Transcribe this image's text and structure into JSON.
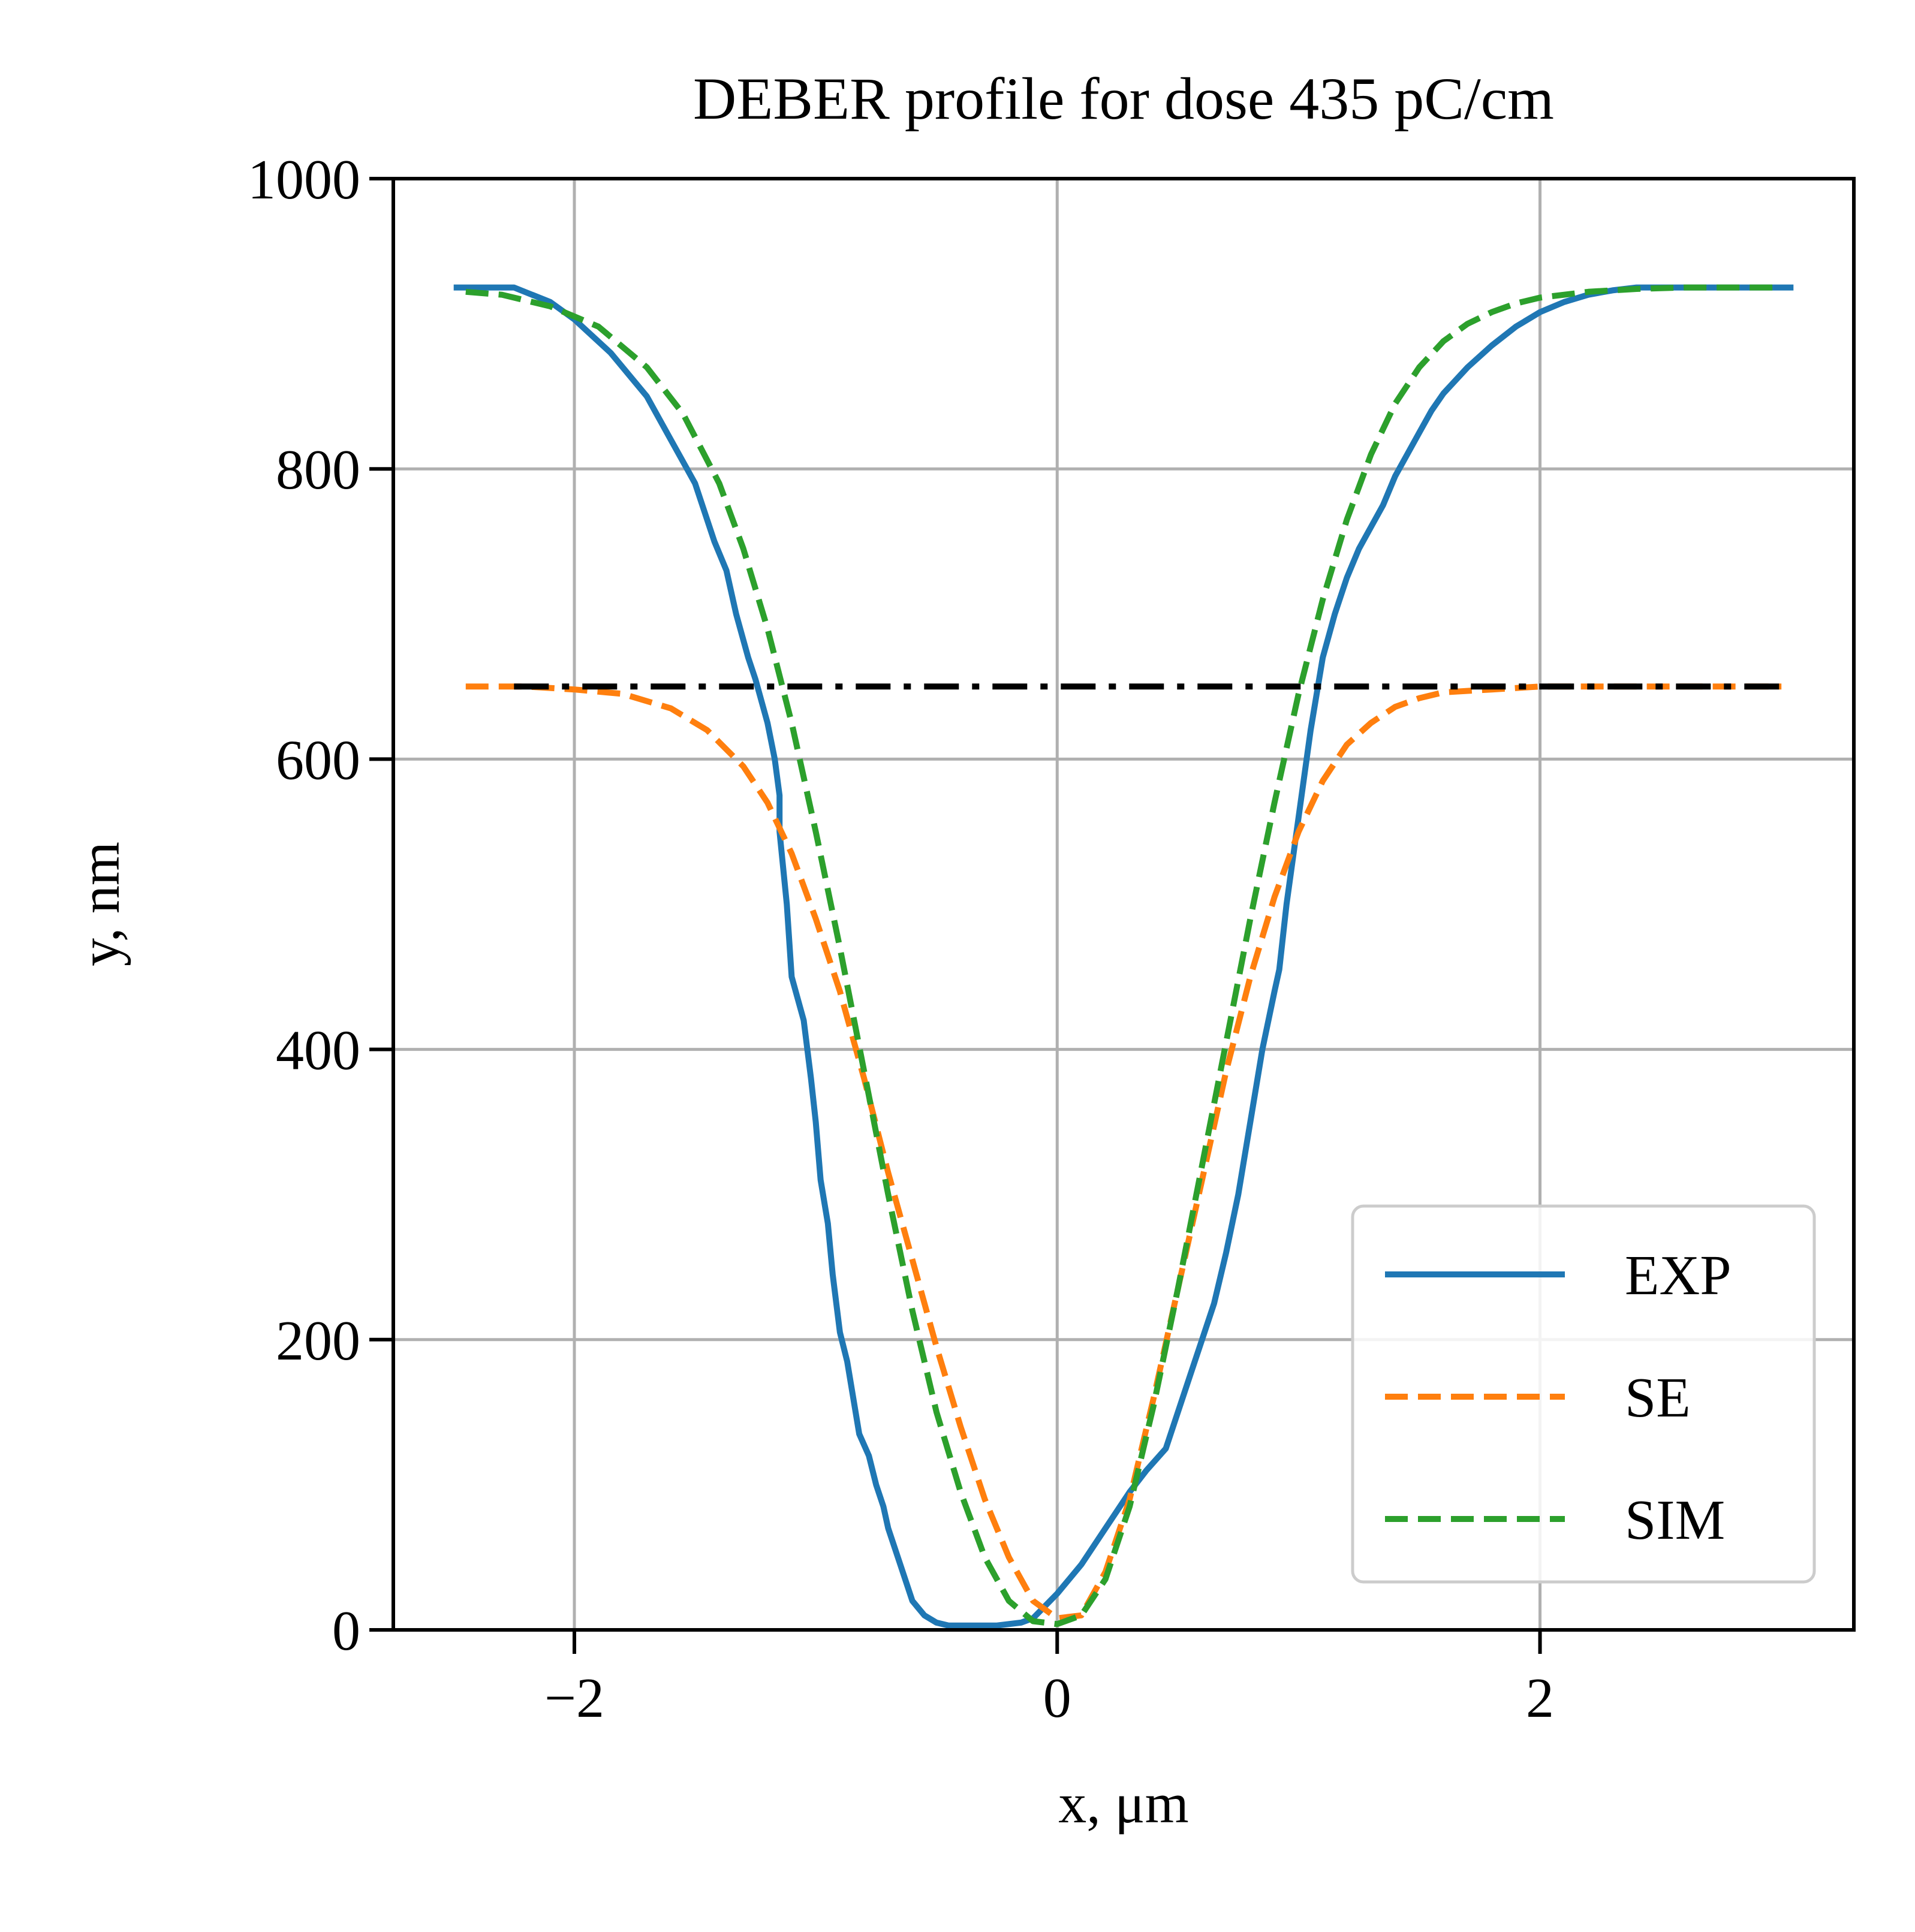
{
  "chart_data": {
    "type": "line",
    "title": "DEBER profile for dose 435 pC/cm",
    "xlabel": "x, μm",
    "ylabel": "y, nm",
    "xlim": [
      -2.75,
      3.3
    ],
    "ylim": [
      0,
      1000
    ],
    "xticks": [
      -2,
      0,
      2
    ],
    "xtick_labels": [
      "−2",
      "0",
      "2"
    ],
    "yticks": [
      0,
      200,
      400,
      600,
      800,
      1000
    ],
    "ytick_labels": [
      "0",
      "200",
      "400",
      "600",
      "800",
      "1000"
    ],
    "grid": true,
    "legend_position": "lower right",
    "series": [
      {
        "name": "EXP",
        "color": "#1f77b4",
        "style": "solid",
        "x": [
          -2.5,
          -2.25,
          -2.1,
          -2.0,
          -1.85,
          -1.7,
          -1.6,
          -1.5,
          -1.42,
          -1.37,
          -1.33,
          -1.28,
          -1.25,
          -1.2,
          -1.17,
          -1.15,
          -1.15,
          -1.12,
          -1.1,
          -1.05,
          -1.02,
          -1.0,
          -0.98,
          -0.95,
          -0.93,
          -0.9,
          -0.87,
          -0.82,
          -0.78,
          -0.75,
          -0.72,
          -0.7,
          -0.65,
          -0.6,
          -0.55,
          -0.5,
          -0.45,
          -0.35,
          -0.25,
          -0.15,
          -0.1,
          0.0,
          0.1,
          0.2,
          0.3,
          0.37,
          0.45,
          0.5,
          0.55,
          0.6,
          0.65,
          0.7,
          0.75,
          0.8,
          0.85,
          0.9,
          0.92,
          0.95,
          1.0,
          1.05,
          1.1,
          1.15,
          1.2,
          1.25,
          1.3,
          1.35,
          1.4,
          1.45,
          1.5,
          1.55,
          1.6,
          1.7,
          1.8,
          1.9,
          2.0,
          2.1,
          2.2,
          2.3,
          2.4,
          2.5,
          2.65,
          2.8,
          3.05
        ],
        "y": [
          925,
          925,
          915,
          903,
          880,
          850,
          820,
          790,
          750,
          730,
          700,
          670,
          655,
          625,
          600,
          575,
          550,
          500,
          450,
          420,
          380,
          350,
          310,
          280,
          245,
          205,
          185,
          135,
          120,
          100,
          85,
          70,
          45,
          20,
          10,
          5,
          3,
          3,
          3,
          5,
          8,
          25,
          45,
          70,
          95,
          110,
          125,
          150,
          175,
          200,
          225,
          260,
          300,
          350,
          400,
          440,
          455,
          500,
          560,
          620,
          670,
          700,
          725,
          745,
          760,
          775,
          795,
          810,
          825,
          840,
          852,
          870,
          885,
          898,
          908,
          915,
          920,
          923,
          925,
          925,
          925,
          925,
          925
        ]
      },
      {
        "name": "SE",
        "color": "#ff7f0e",
        "style": "dashed",
        "x": [
          -2.45,
          -2.2,
          -2.0,
          -1.8,
          -1.6,
          -1.45,
          -1.3,
          -1.2,
          -1.1,
          -1.0,
          -0.9,
          -0.8,
          -0.7,
          -0.6,
          -0.5,
          -0.4,
          -0.3,
          -0.2,
          -0.1,
          0.0,
          0.1,
          0.2,
          0.3,
          0.4,
          0.5,
          0.6,
          0.7,
          0.8,
          0.9,
          1.0,
          1.1,
          1.2,
          1.3,
          1.4,
          1.5,
          1.6,
          1.8,
          2.0,
          2.3,
          2.6,
          3.0
        ],
        "y": [
          650,
          650,
          648,
          645,
          635,
          620,
          595,
          570,
          535,
          490,
          440,
          380,
          315,
          255,
          195,
          140,
          90,
          50,
          20,
          8,
          10,
          40,
          90,
          160,
          235,
          310,
          385,
          450,
          505,
          550,
          585,
          610,
          625,
          636,
          642,
          646,
          648,
          650,
          650,
          650,
          650
        ]
      },
      {
        "name": "SIM",
        "color": "#2ca02c",
        "style": "dashed",
        "x": [
          -2.45,
          -2.3,
          -2.1,
          -1.9,
          -1.7,
          -1.55,
          -1.4,
          -1.3,
          -1.2,
          -1.1,
          -1.0,
          -0.9,
          -0.8,
          -0.7,
          -0.6,
          -0.5,
          -0.4,
          -0.3,
          -0.2,
          -0.1,
          0.0,
          0.1,
          0.2,
          0.3,
          0.4,
          0.5,
          0.6,
          0.7,
          0.8,
          0.9,
          1.0,
          1.1,
          1.2,
          1.3,
          1.4,
          1.5,
          1.6,
          1.7,
          1.8,
          1.9,
          2.0,
          2.2,
          2.4,
          2.6,
          2.8,
          3.0
        ],
        "y": [
          922,
          920,
          912,
          898,
          870,
          838,
          790,
          745,
          690,
          625,
          550,
          470,
          385,
          300,
          220,
          150,
          95,
          50,
          20,
          6,
          4,
          10,
          35,
          85,
          155,
          235,
          320,
          405,
          490,
          570,
          645,
          710,
          765,
          810,
          845,
          870,
          888,
          900,
          908,
          914,
          918,
          922,
          924,
          925,
          925,
          925
        ]
      },
      {
        "color": "#000000",
        "style": "dashdot",
        "x": [
          -2.25,
          3.0
        ],
        "y": [
          650,
          650
        ]
      }
    ]
  }
}
